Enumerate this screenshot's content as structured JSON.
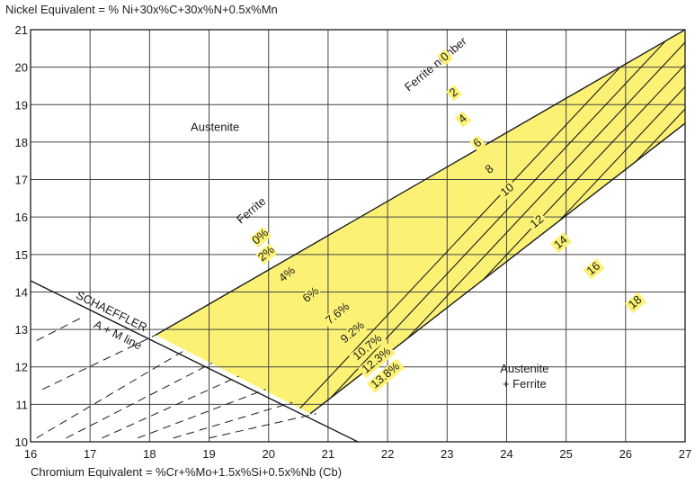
{
  "chart_data": {
    "type": "area",
    "title": "",
    "ylabel": "Nickel Equivalent = % Ni+30x%C+30x%N+0.5x%Mn",
    "xlabel": "Chromium Equivalent = %Cr+%Mo+1.5x%Si+0.5x%Nb (Cb)",
    "xlim": [
      16,
      27
    ],
    "ylim": [
      10,
      21
    ],
    "x_ticks": [
      16,
      17,
      18,
      19,
      20,
      21,
      22,
      23,
      24,
      25,
      26,
      27
    ],
    "y_ticks": [
      10,
      11,
      12,
      13,
      14,
      15,
      16,
      17,
      18,
      19,
      20,
      21
    ],
    "grid": true,
    "colors": {
      "band": "#fbf275",
      "line": "#1a1a1a",
      "grid": "#444444"
    },
    "regions": [
      {
        "name": "Austenite",
        "label": "Austenite",
        "x": 19.1,
        "y": 18.3
      },
      {
        "name": "Austenite + Ferrite",
        "label_line1": "Austenite",
        "label_line2": "+ Ferrite",
        "x": 24.3,
        "y": 11.85
      }
    ],
    "schaeffler_line": {
      "label_line1": "SCHAEFFLER",
      "label_line2": "A + M line",
      "points": [
        [
          16,
          14.3
        ],
        [
          21.5,
          10
        ]
      ]
    },
    "ferrite_band": {
      "upper_boundary": [
        [
          18.1,
          12.85
        ],
        [
          27,
          21
        ]
      ],
      "lower_boundary": [
        [
          20.7,
          10.75
        ],
        [
          27,
          18.5
        ]
      ]
    },
    "ferrite_number": {
      "title": "Ferrite number",
      "values": [
        0,
        2,
        4,
        6,
        8,
        10,
        12,
        14,
        16,
        18
      ],
      "label_positions": [
        [
          23.0,
          20.2
        ],
        [
          23.15,
          19.25
        ],
        [
          23.3,
          18.55
        ],
        [
          23.55,
          17.9
        ],
        [
          23.75,
          17.2
        ],
        [
          24.05,
          16.65
        ],
        [
          24.55,
          15.8
        ],
        [
          24.95,
          15.25
        ],
        [
          25.5,
          14.55
        ],
        [
          26.2,
          13.65
        ]
      ]
    },
    "ferrite_percent": {
      "title": "Ferrite",
      "values": [
        "0%",
        "2%",
        "4%",
        "6%",
        "7.6%",
        "9.2%",
        "10.7%",
        "12.3%",
        "13.8%"
      ],
      "label_positions": [
        [
          19.9,
          15.4
        ],
        [
          20.0,
          14.95
        ],
        [
          20.35,
          14.4
        ],
        [
          20.75,
          13.85
        ],
        [
          21.2,
          13.35
        ],
        [
          21.45,
          12.85
        ],
        [
          21.7,
          12.45
        ],
        [
          21.85,
          12.1
        ],
        [
          22.0,
          11.7
        ]
      ]
    },
    "iso_lines": [
      {
        "x1": 20.0,
        "x2": 26.5
      },
      {
        "x1": 20.35,
        "x2": 26.85
      },
      {
        "x1": 20.7,
        "x2": 27.2
      },
      {
        "x1": 21.05,
        "x2": 27.55
      },
      {
        "x1": 21.4,
        "x2": 27.9
      },
      {
        "x1": 21.75,
        "x2": 28.25
      },
      {
        "x1": 22.1,
        "x2": 28.6
      },
      {
        "x1": 22.45,
        "x2": 28.95
      },
      {
        "x1": 22.8,
        "x2": 29.3
      },
      {
        "x1": 23.15,
        "x2": 29.65
      },
      {
        "x1": 23.5,
        "x2": 30.0
      },
      {
        "x1": 23.85,
        "x2": 30.35
      },
      {
        "x1": 24.2,
        "x2": 30.7
      },
      {
        "x1": 24.55,
        "x2": 31.05
      },
      {
        "x1": 24.9,
        "x2": 31.4
      },
      {
        "x1": 25.25,
        "x2": 31.75
      },
      {
        "x1": 25.6,
        "x2": 32.1
      },
      {
        "x1": 25.95,
        "x2": 32.45
      },
      {
        "x1": 26.3,
        "x2": 32.8
      },
      {
        "x1": 26.65,
        "x2": 33.15
      }
    ],
    "dashed_extensions": [
      {
        "from": [
          16.1,
          10.1
        ],
        "to": [
          18.6,
          12.45
        ]
      },
      {
        "from": [
          16.6,
          10.1
        ],
        "to": [
          19.05,
          12.1
        ]
      },
      {
        "from": [
          17.2,
          10.1
        ],
        "to": [
          19.5,
          11.75
        ]
      },
      {
        "from": [
          17.8,
          10.1
        ],
        "to": [
          19.95,
          11.4
        ]
      },
      {
        "from": [
          18.4,
          10.1
        ],
        "to": [
          20.4,
          11.05
        ]
      },
      {
        "from": [
          19.0,
          10.1
        ],
        "to": [
          20.8,
          10.75
        ]
      },
      {
        "from": [
          16.2,
          11.4
        ],
        "to": [
          18.1,
          12.85
        ]
      },
      {
        "from": [
          16.1,
          12.7
        ],
        "to": [
          16.9,
          13.35
        ]
      }
    ]
  }
}
